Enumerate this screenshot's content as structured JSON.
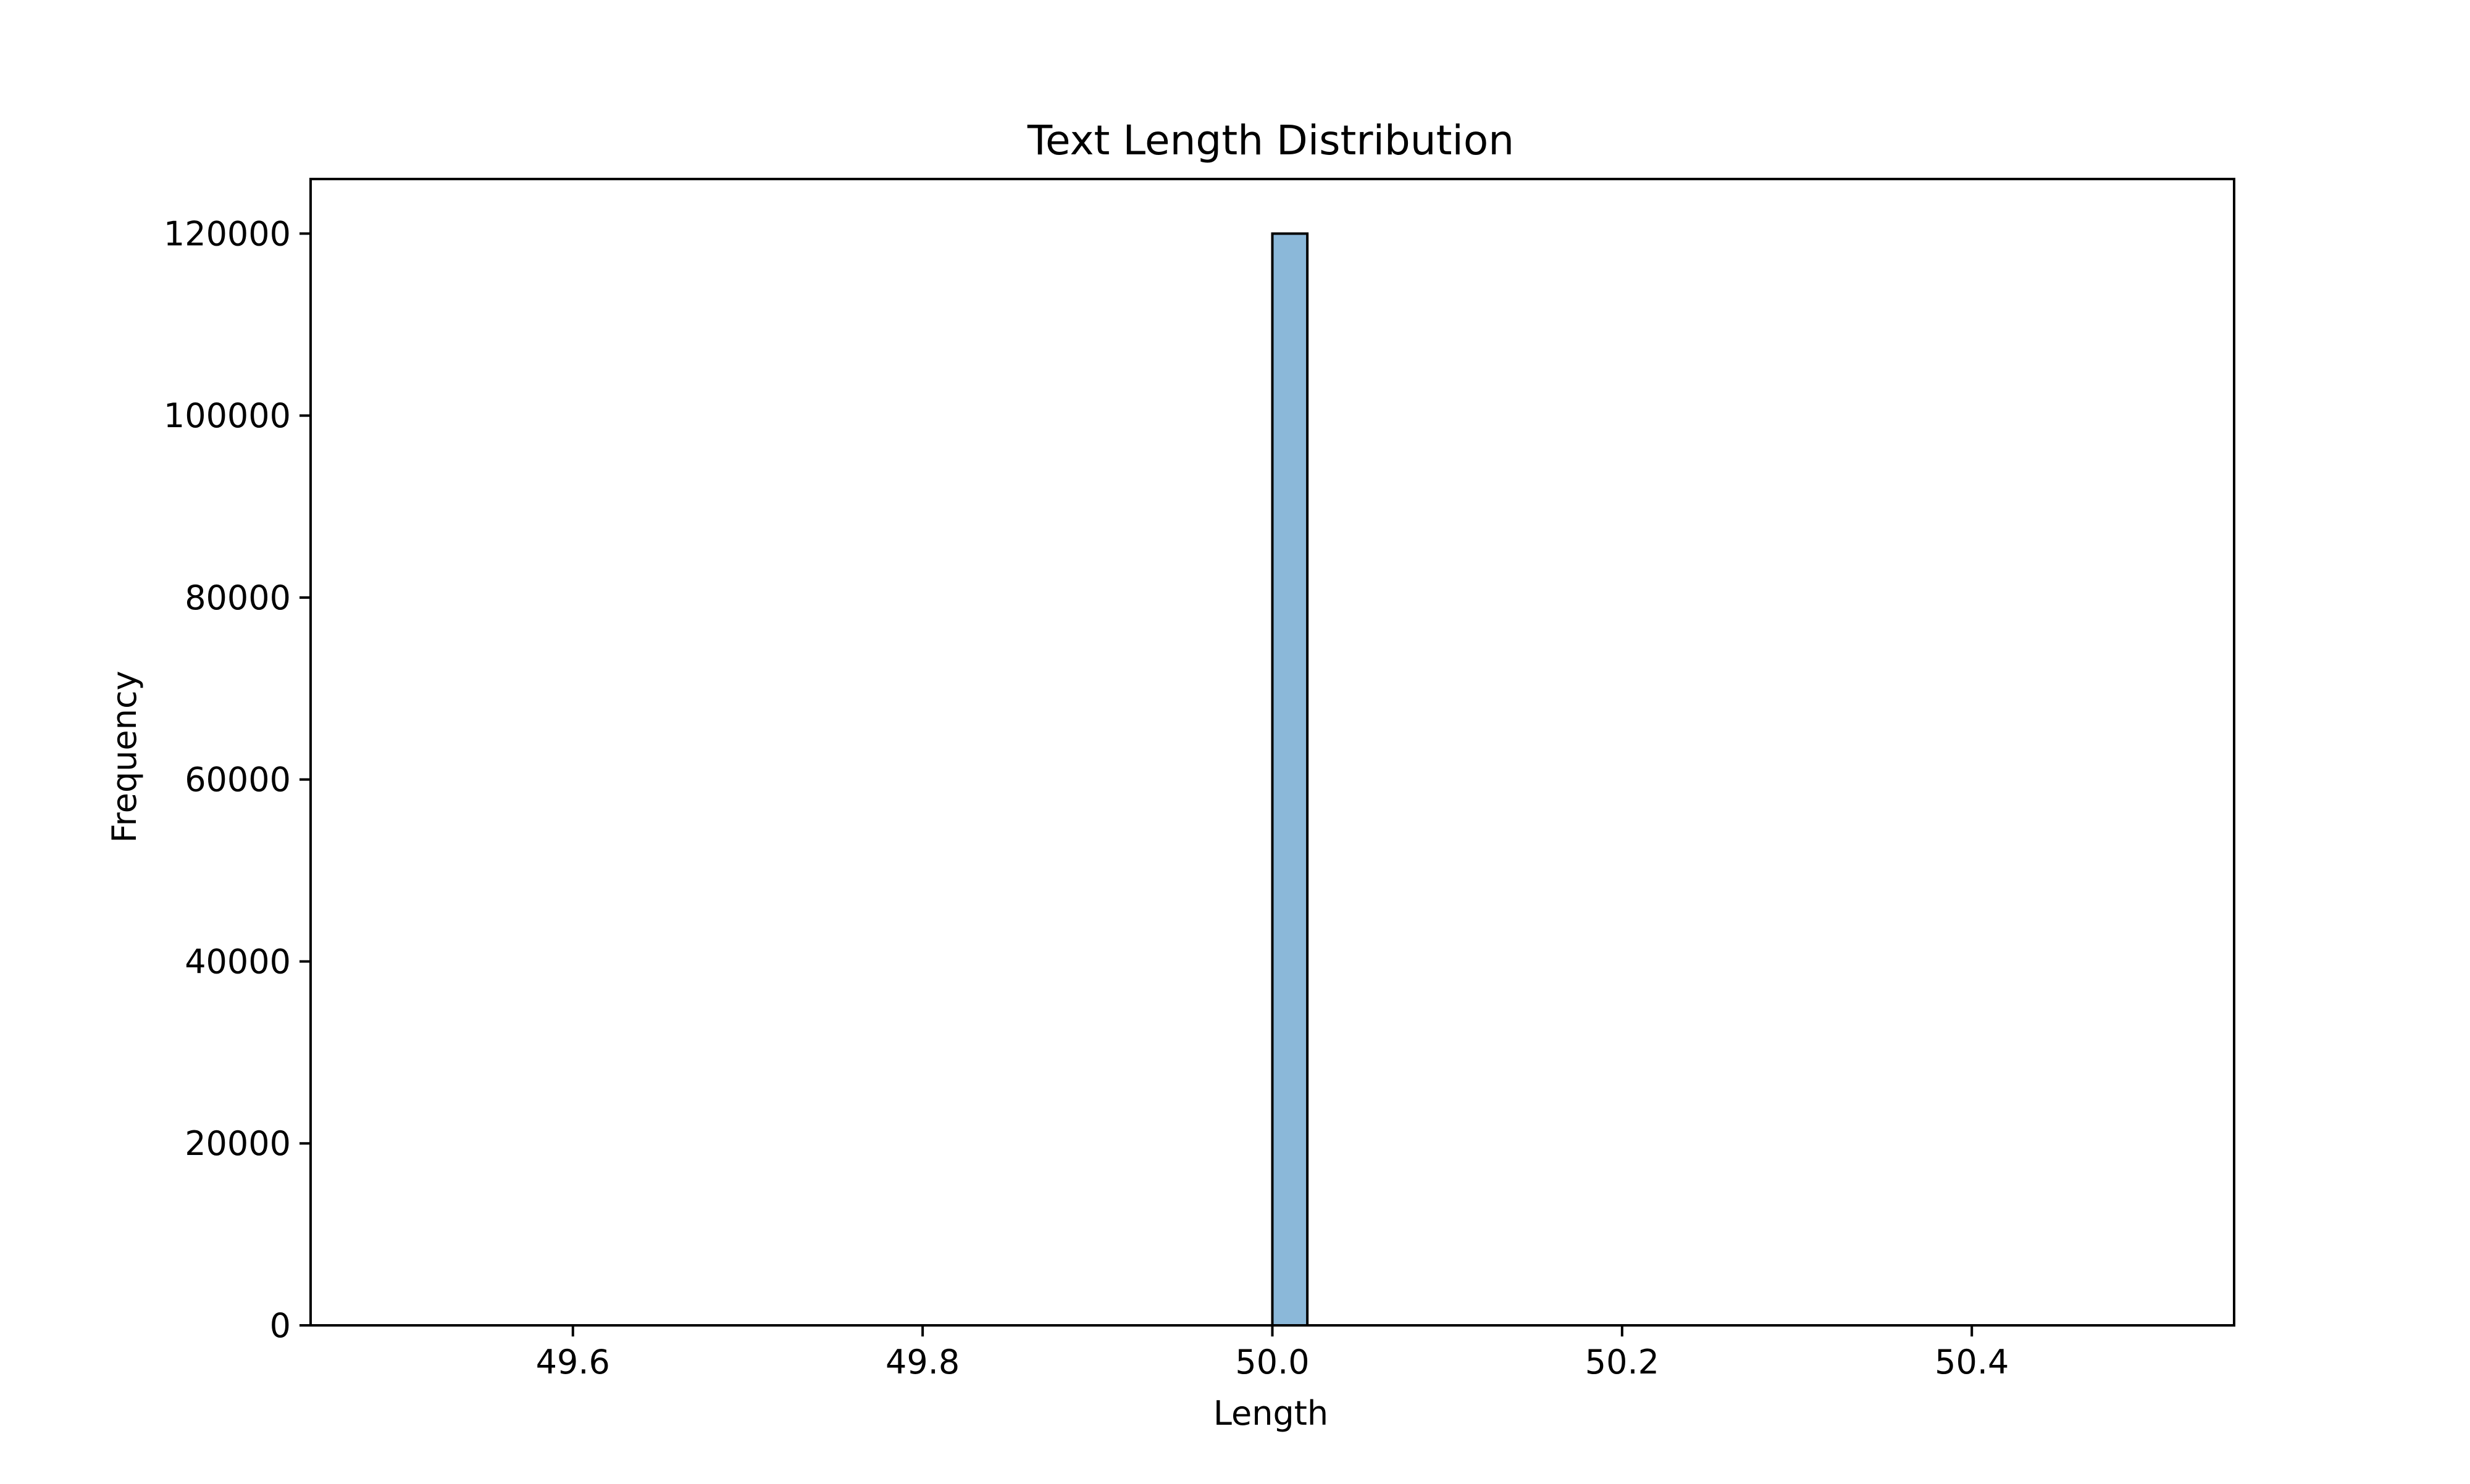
{
  "chart_data": {
    "type": "bar",
    "title": "Text Length Distribution",
    "xlabel": "Length",
    "ylabel": "Frequency",
    "xlim": [
      49.45,
      50.55
    ],
    "ylim": [
      0,
      126000
    ],
    "xticks": [
      49.6,
      49.8,
      50.0,
      50.2,
      50.4
    ],
    "xtick_labels": [
      "49.6",
      "49.8",
      "50.0",
      "50.2",
      "50.4"
    ],
    "yticks": [
      0,
      20000,
      40000,
      60000,
      80000,
      100000,
      120000
    ],
    "ytick_labels": [
      "0",
      "20000",
      "40000",
      "60000",
      "80000",
      "100000",
      "120000"
    ],
    "bins": [
      {
        "start": 50.0,
        "end": 50.02,
        "count": 120000
      }
    ],
    "baseline_range": [
      49.5,
      50.5
    ],
    "grid": false,
    "colors": {
      "bar_fill": "#8bb8d9",
      "bar_edge": "#000000"
    }
  }
}
